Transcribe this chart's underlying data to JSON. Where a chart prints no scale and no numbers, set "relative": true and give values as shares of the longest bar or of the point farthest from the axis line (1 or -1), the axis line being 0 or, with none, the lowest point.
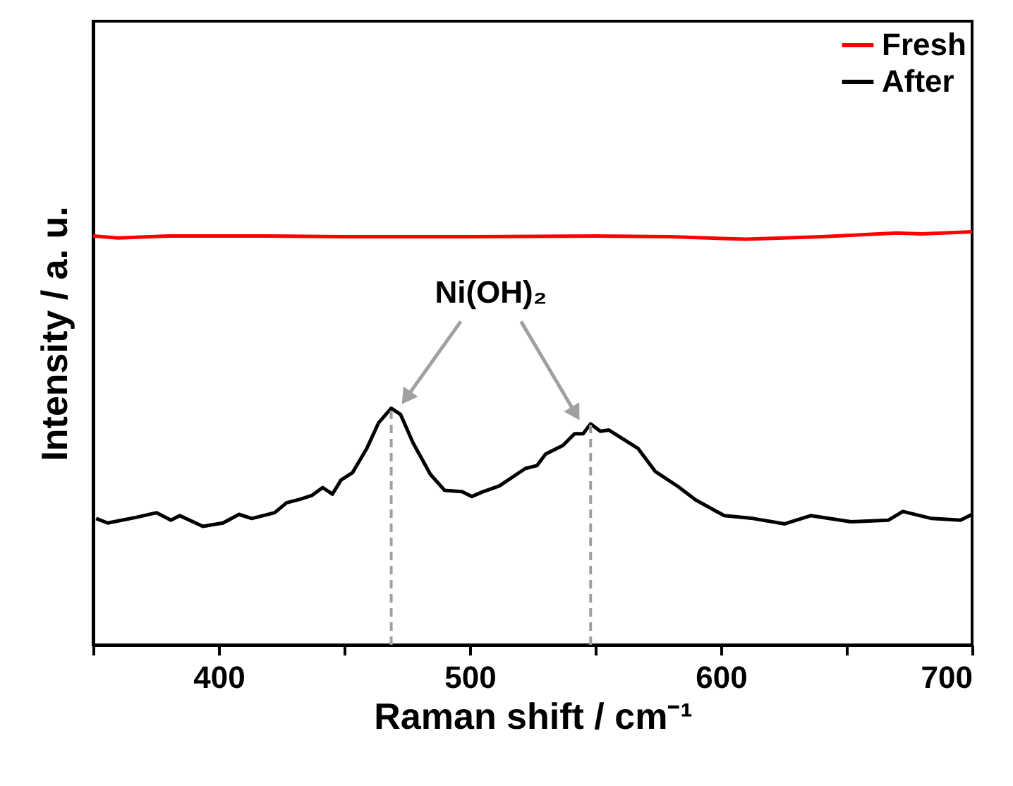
{
  "chart_data": {
    "type": "line",
    "relative": true,
    "xlabel": "Raman shift / cm⁻¹",
    "ylabel": "Intensity / a. u.",
    "xlim": [
      350,
      700
    ],
    "xticks": [
      {
        "value": 350,
        "label": null
      },
      400,
      {
        "value": 450,
        "label": null
      },
      500,
      {
        "value": 550,
        "label": null
      },
      600,
      {
        "value": 650,
        "label": null
      },
      700
    ],
    "legend": "top right",
    "grid": false,
    "line_style": "solid",
    "series": [
      {
        "name": "Fresh",
        "color": "#ff0000",
        "x": [
          350,
          360,
          380,
          420,
          450,
          500,
          550,
          580,
          610,
          640,
          670,
          680,
          700
        ],
        "values": [
          0.99,
          0.985,
          0.99,
          0.99,
          0.988,
          0.988,
          0.99,
          0.988,
          0.982,
          0.988,
          0.997,
          0.995,
          1.0
        ]
      },
      {
        "name": "After",
        "color": "#000000",
        "x": [
          351.2,
          355.8,
          367.3,
          375.3,
          381,
          384.5,
          393.7,
          401.7,
          408.1,
          413.2,
          422.3,
          427,
          432.6,
          437.2,
          441.4,
          445.3,
          448.7,
          453.3,
          459,
          463.7,
          468.7,
          472.4,
          477.4,
          484.3,
          490,
          496.9,
          500.8,
          504.9,
          511.8,
          522.1,
          526.7,
          530.2,
          537.1,
          541.7,
          545.1,
          548.1,
          552,
          555.4,
          566.9,
          573.8,
          583,
          589.9,
          601.3,
          612.8,
          625.4,
          635.7,
          651.8,
          666.7,
          672.4,
          683.9,
          695.4,
          700
        ],
        "values": [
          0.306,
          0.295,
          0.309,
          0.32,
          0.302,
          0.313,
          0.287,
          0.295,
          0.316,
          0.306,
          0.32,
          0.344,
          0.353,
          0.362,
          0.381,
          0.365,
          0.399,
          0.417,
          0.476,
          0.538,
          0.573,
          0.558,
          0.489,
          0.413,
          0.374,
          0.371,
          0.359,
          0.37,
          0.385,
          0.427,
          0.434,
          0.462,
          0.483,
          0.511,
          0.511,
          0.535,
          0.517,
          0.52,
          0.476,
          0.42,
          0.383,
          0.351,
          0.313,
          0.306,
          0.293,
          0.313,
          0.298,
          0.302,
          0.323,
          0.306,
          0.302,
          0.316
        ]
      }
    ],
    "ref_lines": [
      {
        "axis": "x",
        "value": 468.7,
        "color": "#a0a0a0",
        "line_style": "dashed"
      },
      {
        "axis": "x",
        "value": 548.1,
        "color": "#a0a0a0",
        "line_style": "dashed"
      }
    ],
    "annotations": [
      "Ni(OH)₂"
    ]
  }
}
